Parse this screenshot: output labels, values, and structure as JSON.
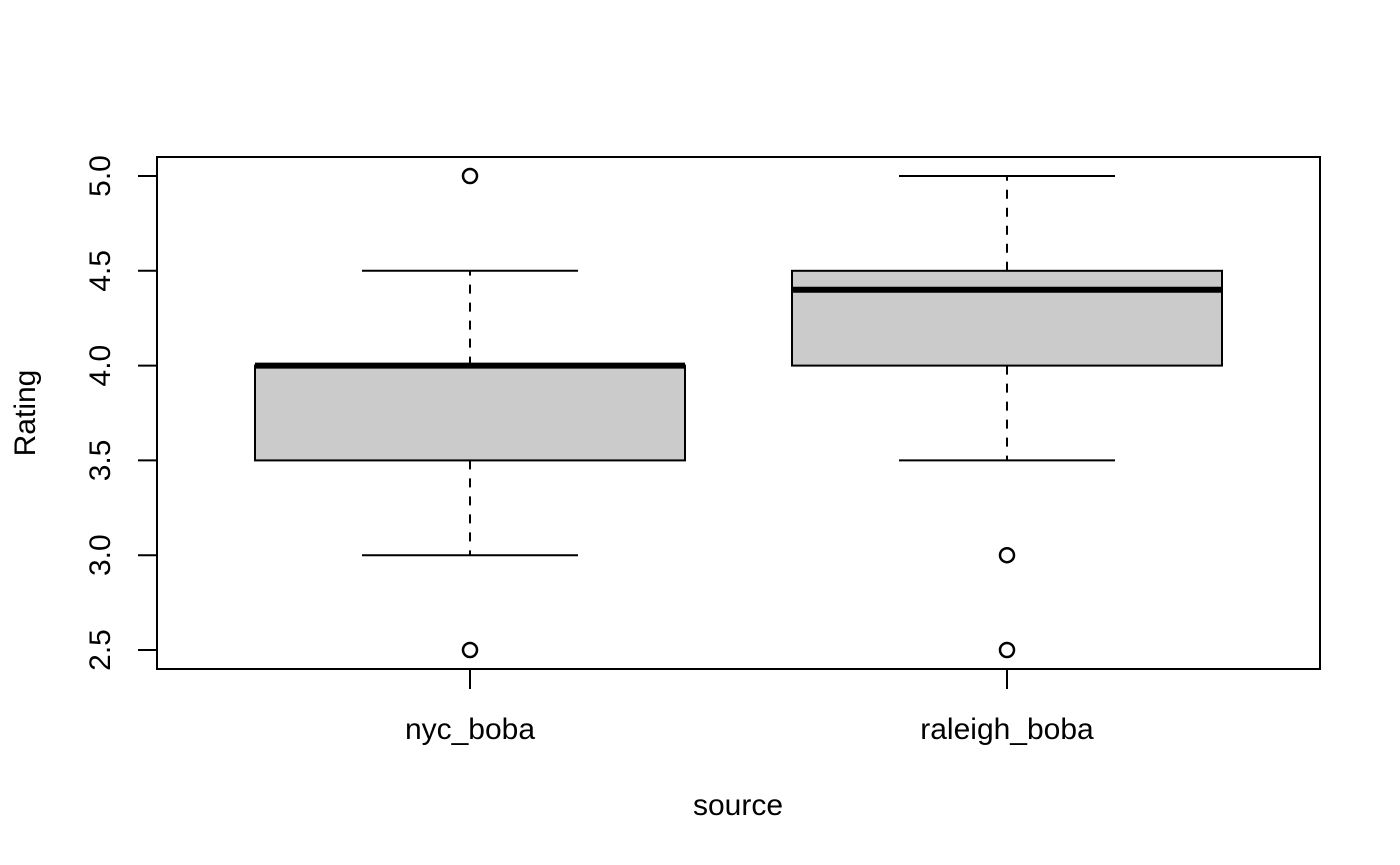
{
  "chart_data": {
    "type": "box",
    "title": "",
    "xlabel": "source",
    "ylabel": "Rating",
    "ylim": [
      2.45,
      5.1
    ],
    "yticks": [
      2.5,
      3.0,
      3.5,
      4.0,
      4.5,
      5.0
    ],
    "ytick_labels": [
      "2.5",
      "3.0",
      "3.5",
      "4.0",
      "4.5",
      "5.0"
    ],
    "grid": false,
    "box_fill": "#cbcbcb",
    "categories": [
      "nyc_boba",
      "raleigh_boba"
    ],
    "boxes": [
      {
        "category": "nyc_boba",
        "whisker_low": 3.0,
        "q1": 3.5,
        "median": 4.0,
        "q3": 4.0,
        "whisker_high": 4.5,
        "outliers": [
          5.0,
          2.5
        ]
      },
      {
        "category": "raleigh_boba",
        "whisker_low": 3.5,
        "q1": 4.0,
        "median": 4.4,
        "q3": 4.5,
        "whisker_high": 5.0,
        "outliers": [
          3.0,
          2.5
        ]
      }
    ]
  }
}
